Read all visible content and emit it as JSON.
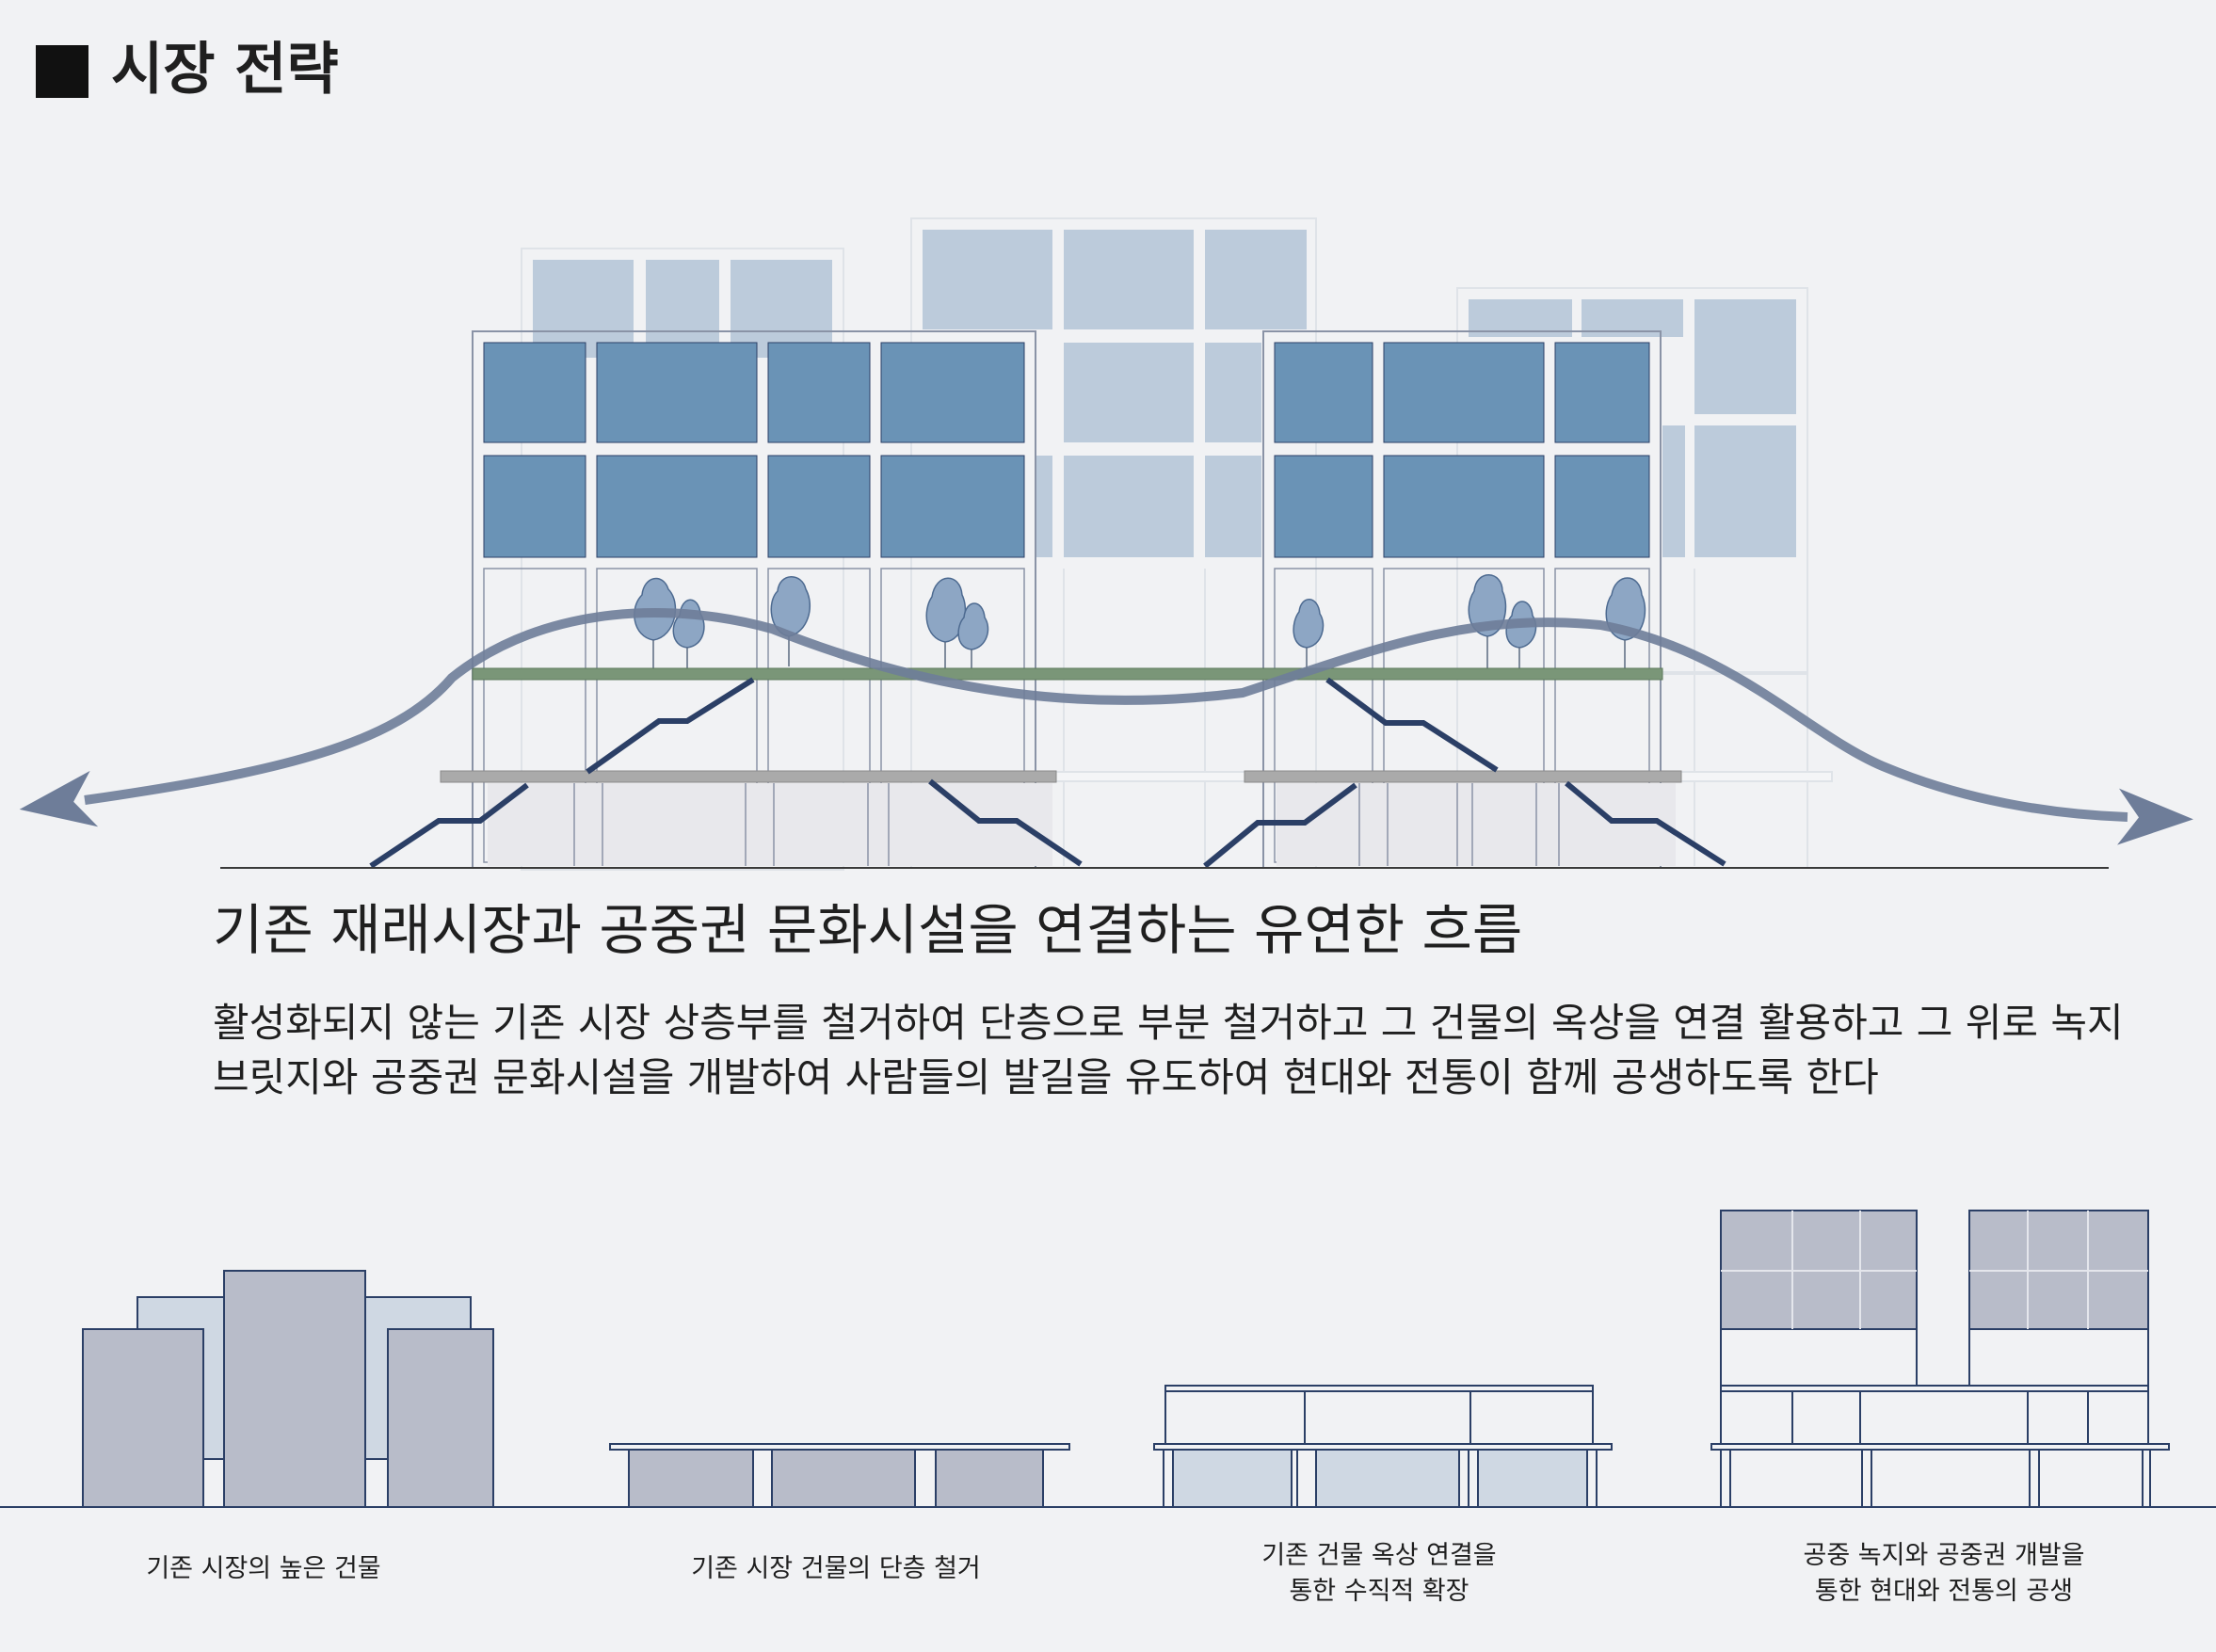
{
  "header": {
    "title": "시장 전략"
  },
  "main": {
    "heading": "기존 재래시장과 공중권 문화시설을 연결하는 유연한 흐름",
    "description_lines": [
      "활성화되지 않는 기존 시장 상층부를 철거하여 단층으로 부분 철거하고 그 건물의 옥상을 연결 활용하고 그 위로 녹지",
      "브릿지와 공중권 문화시설을 개발하여 사람들의 발길을 유도하여 현대와 전통이 함께 공생하도록 한다"
    ]
  },
  "steps": [
    {
      "lines": [
        "기존 시장의 높은 건물"
      ]
    },
    {
      "lines": [
        "기존 시장 건물의 단층 철거"
      ]
    },
    {
      "lines": [
        "기존 건물 옥상 연결을",
        "통한 수직적 확장"
      ]
    },
    {
      "lines": [
        "공중 녹지와 공중권 개발을",
        "통한 현대와 전통의 공생"
      ]
    }
  ],
  "colors": {
    "background": "#f1f2f4",
    "window_dark": "#6a93b6",
    "window_light": "#bccbdb",
    "green_bridge": "#7a9678",
    "slab_gray": "#aaaaaa",
    "flow_arrow": "#6e7d99",
    "building_gray": "#b8bcc9",
    "frame_navy": "#2b3f66"
  }
}
